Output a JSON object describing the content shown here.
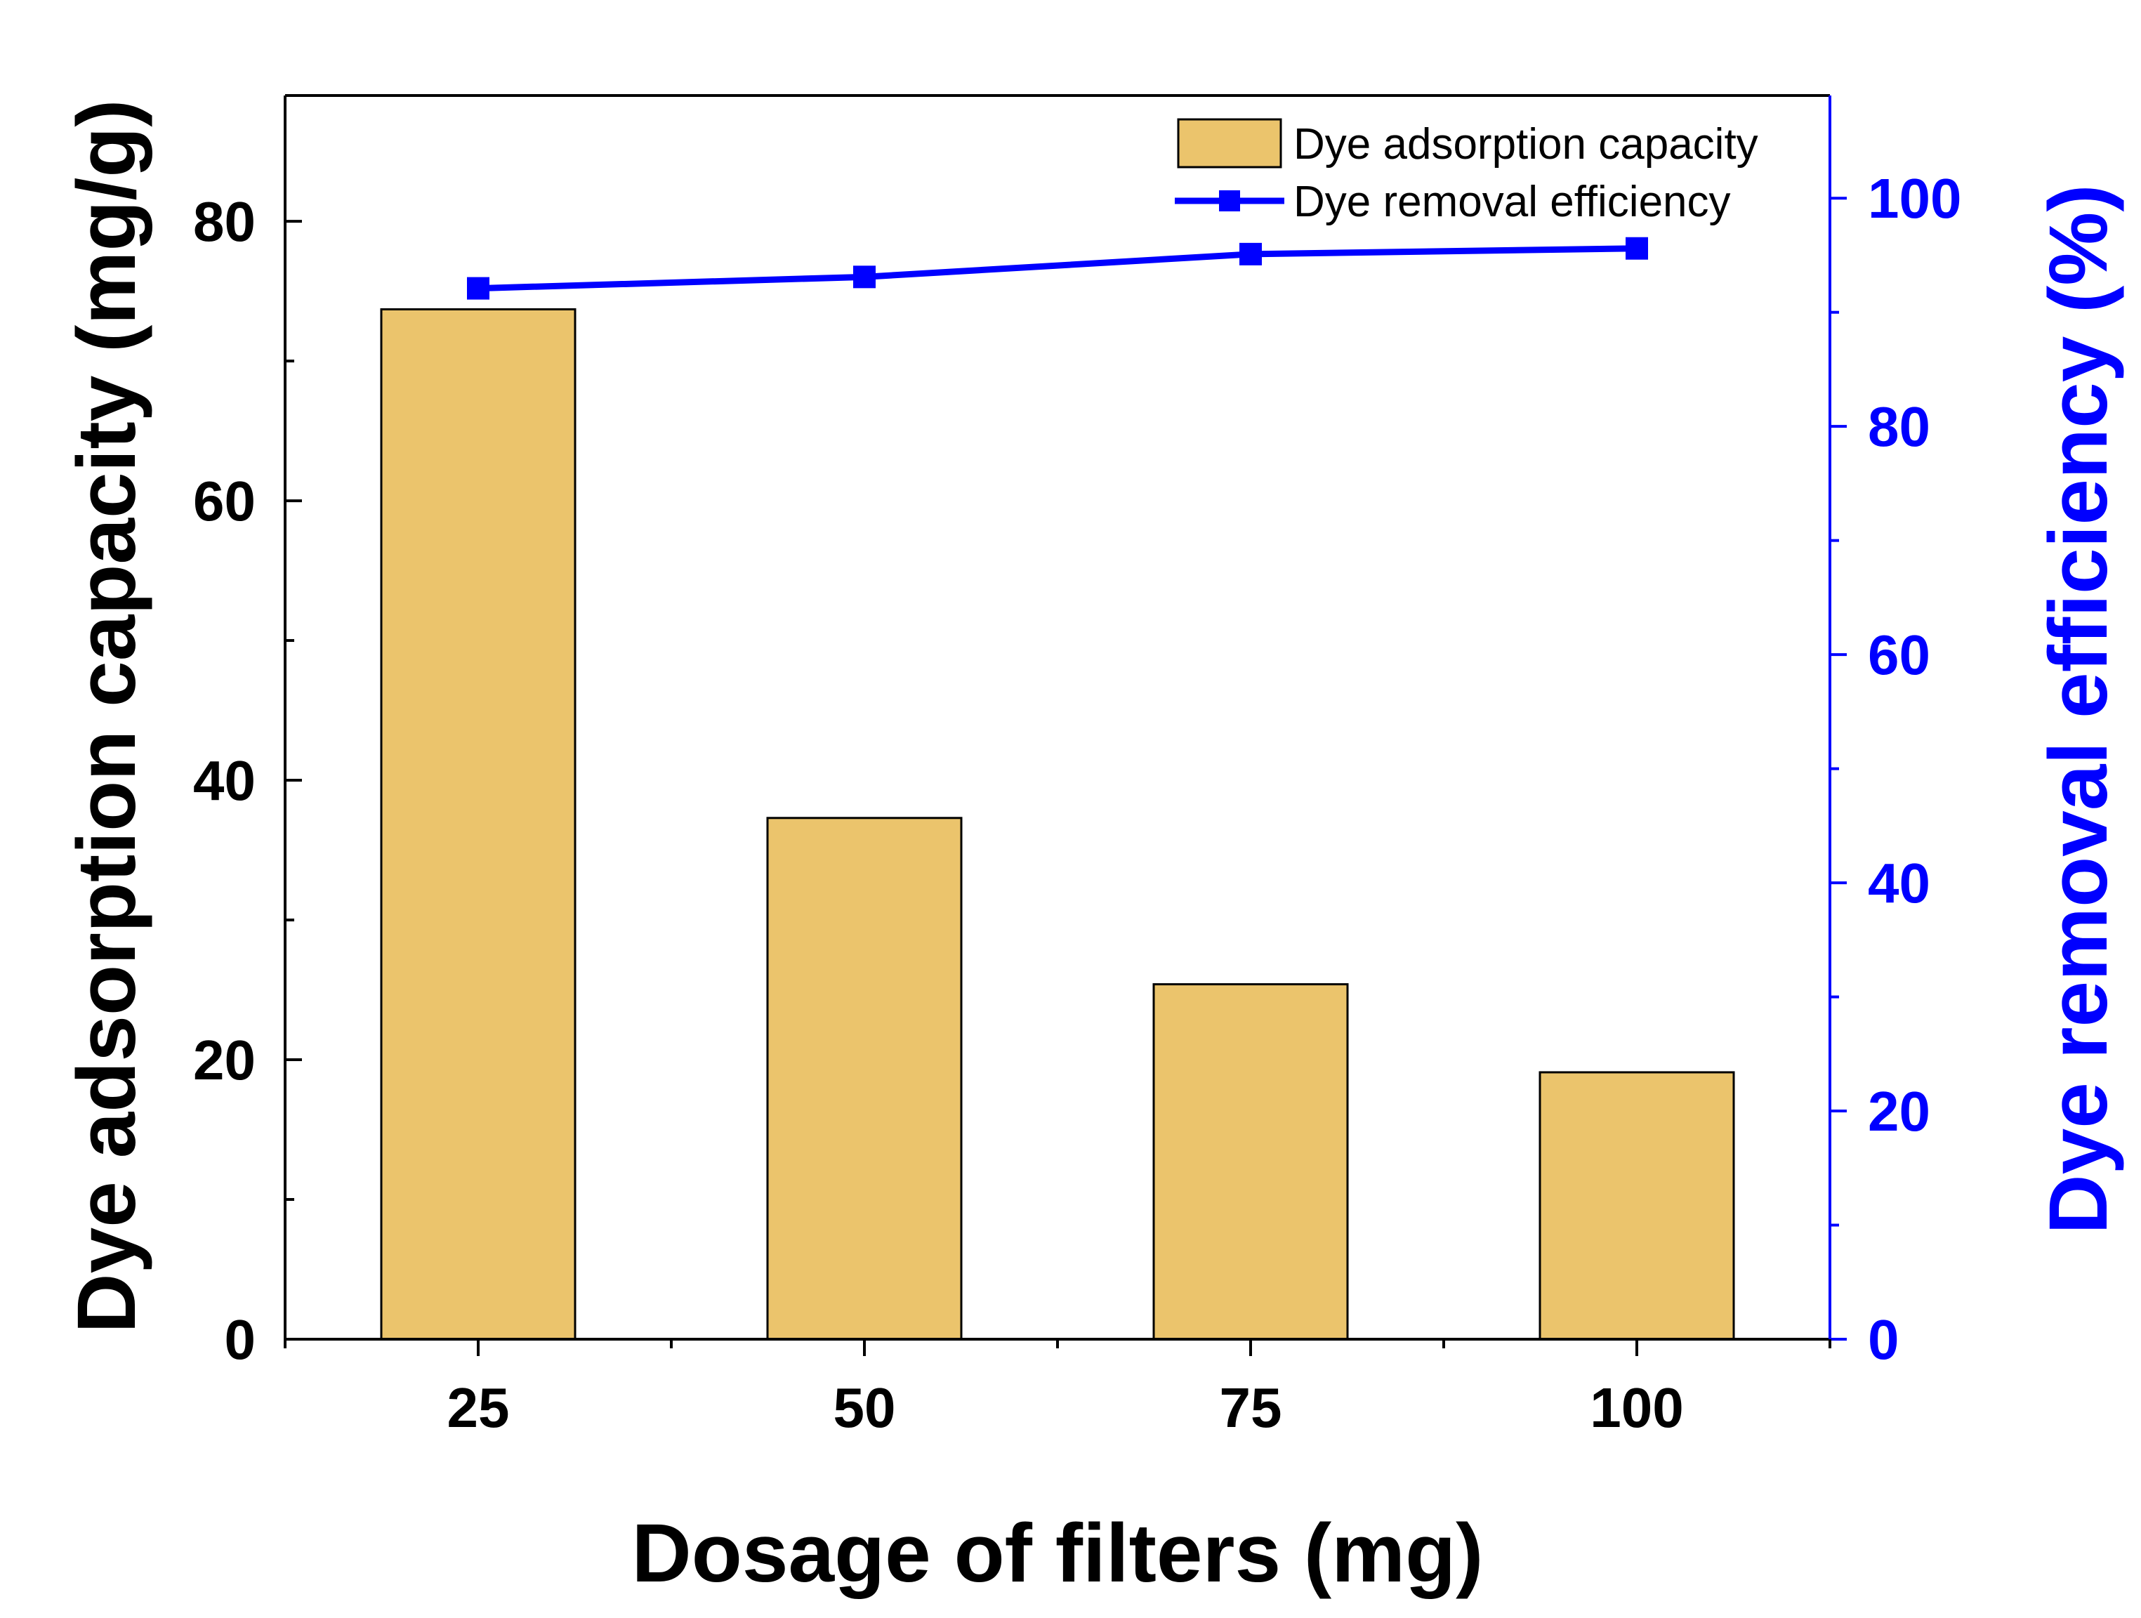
{
  "chart_data": {
    "type": "bar+line",
    "title": "",
    "xlabel": "Dosage of filters (mg)",
    "categories": [
      "25",
      "50",
      "75",
      "100"
    ],
    "series": [
      {
        "name": "Dye adsorption capacity",
        "type": "bar",
        "axis": "left",
        "values": [
          73.7,
          37.3,
          25.4,
          19.1
        ]
      },
      {
        "name": "Dye removal efficiency",
        "type": "line",
        "axis": "right",
        "values": [
          92.1,
          93.1,
          95.1,
          95.6
        ]
      }
    ],
    "y_left": {
      "label": "Dye adsorption capacity (mg/g)",
      "lim": [
        0,
        89
      ],
      "ticks": [
        0,
        20,
        40,
        60,
        80
      ],
      "tick_labels": [
        "0",
        "20",
        "40",
        "60",
        "80"
      ]
    },
    "y_right": {
      "label": "Dye removal efficiency (%)",
      "lim": [
        0,
        109
      ],
      "ticks": [
        0,
        20,
        40,
        60,
        80,
        100
      ],
      "tick_labels": [
        "0",
        "20",
        "40",
        "60",
        "80",
        "100"
      ]
    },
    "legend": {
      "position": "top-right",
      "entries": [
        "Dye adsorption capacity",
        "Dye removal efficiency"
      ]
    },
    "colors": {
      "bar_fill": "#EBC46C",
      "line": "#0000FF",
      "left_axis": "#000000",
      "right_axis": "#0000FF"
    },
    "grid": false
  }
}
